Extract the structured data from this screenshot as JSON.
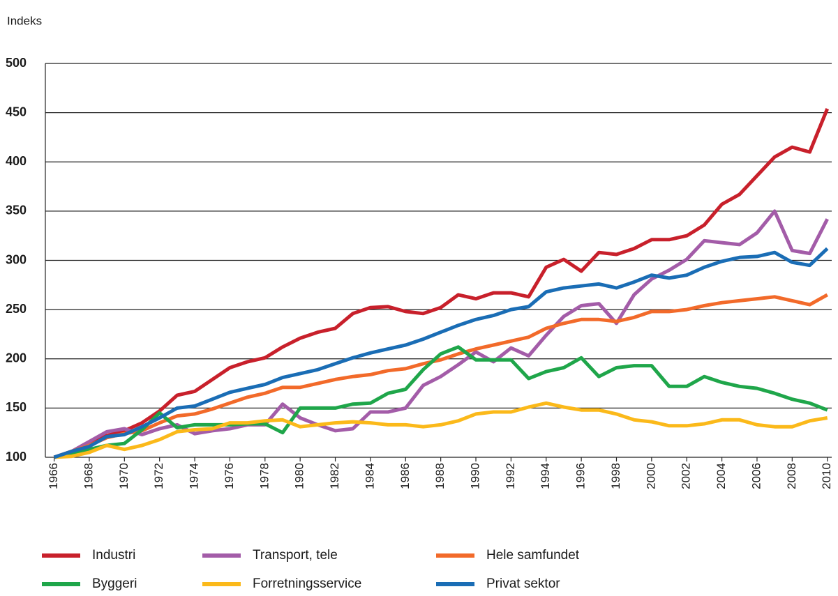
{
  "chart_data": {
    "type": "line",
    "ylabel": "Indeks",
    "x": [
      1966,
      1967,
      1968,
      1969,
      1970,
      1971,
      1972,
      1973,
      1974,
      1975,
      1976,
      1977,
      1978,
      1979,
      1980,
      1981,
      1982,
      1983,
      1984,
      1985,
      1986,
      1987,
      1988,
      1989,
      1990,
      1991,
      1992,
      1993,
      1994,
      1995,
      1996,
      1997,
      1998,
      1999,
      2000,
      2001,
      2002,
      2003,
      2004,
      2005,
      2006,
      2007,
      2008,
      2009,
      2010
    ],
    "xlim": [
      1965.5,
      2010.25
    ],
    "xticks": [
      1966,
      1968,
      1970,
      1972,
      1974,
      1976,
      1978,
      1980,
      1982,
      1984,
      1986,
      1988,
      1990,
      1992,
      1994,
      1996,
      1998,
      2000,
      2002,
      2004,
      2006,
      2008,
      2010
    ],
    "ylim": [
      100,
      500
    ],
    "yticks": [
      100,
      150,
      200,
      250,
      300,
      350,
      400,
      450,
      500
    ],
    "grid": true,
    "legend": "bottom",
    "series": [
      {
        "name": "Industri",
        "color": "#c8202b",
        "values": [
          100,
          106,
          113,
          122,
          127,
          135,
          147,
          163,
          167,
          179,
          191,
          197,
          201,
          212,
          221,
          227,
          231,
          246,
          252,
          253,
          248,
          246,
          252,
          265,
          261,
          267,
          267,
          263,
          293,
          301,
          289,
          308,
          306,
          312,
          321,
          321,
          325,
          336,
          357,
          367,
          386,
          405,
          415,
          410,
          454
        ]
      },
      {
        "name": "Transport, tele",
        "color": "#a35ca8",
        "values": [
          100,
          106,
          116,
          126,
          129,
          123,
          129,
          133,
          124,
          127,
          129,
          133,
          133,
          154,
          140,
          133,
          127,
          129,
          146,
          146,
          150,
          173,
          182,
          194,
          207,
          197,
          211,
          203,
          224,
          243,
          254,
          256,
          236,
          265,
          281,
          290,
          301,
          320,
          318,
          316,
          328,
          350,
          310,
          307,
          342
        ]
      },
      {
        "name": "Hele samfundet",
        "color": "#f26a2a",
        "values": [
          100,
          106,
          112,
          120,
          124,
          127,
          135,
          142,
          144,
          149,
          155,
          161,
          165,
          171,
          171,
          175,
          179,
          182,
          184,
          188,
          190,
          195,
          199,
          205,
          210,
          214,
          218,
          222,
          231,
          236,
          240,
          240,
          238,
          242,
          248,
          248,
          250,
          254,
          257,
          259,
          261,
          263,
          259,
          255,
          265
        ]
      },
      {
        "name": "Byggeri",
        "color": "#1fa64a",
        "values": [
          100,
          104,
          108,
          112,
          114,
          128,
          145,
          130,
          133,
          133,
          133,
          134,
          134,
          125,
          150,
          150,
          150,
          154,
          155,
          165,
          169,
          189,
          205,
          212,
          199,
          199,
          199,
          180,
          187,
          191,
          201,
          182,
          191,
          193,
          193,
          172,
          172,
          182,
          176,
          172,
          170,
          165,
          159,
          155,
          148
        ]
      },
      {
        "name": "Forretningsservice",
        "color": "#fbb91a",
        "values": [
          100,
          101,
          105,
          112,
          108,
          112,
          118,
          126,
          128,
          129,
          135,
          135,
          137,
          138,
          131,
          133,
          135,
          136,
          135,
          133,
          133,
          131,
          133,
          137,
          144,
          146,
          146,
          151,
          155,
          151,
          148,
          148,
          144,
          138,
          136,
          132,
          132,
          134,
          138,
          138,
          133,
          131,
          131,
          137,
          140
        ]
      },
      {
        "name": "Privat sektor",
        "color": "#1a6db5",
        "values": [
          100,
          106,
          111,
          121,
          123,
          131,
          140,
          150,
          152,
          159,
          166,
          170,
          174,
          181,
          185,
          189,
          195,
          201,
          206,
          210,
          214,
          220,
          227,
          234,
          240,
          244,
          250,
          253,
          268,
          272,
          274,
          276,
          272,
          278,
          285,
          282,
          285,
          293,
          299,
          303,
          304,
          308,
          298,
          295,
          312
        ]
      }
    ]
  }
}
